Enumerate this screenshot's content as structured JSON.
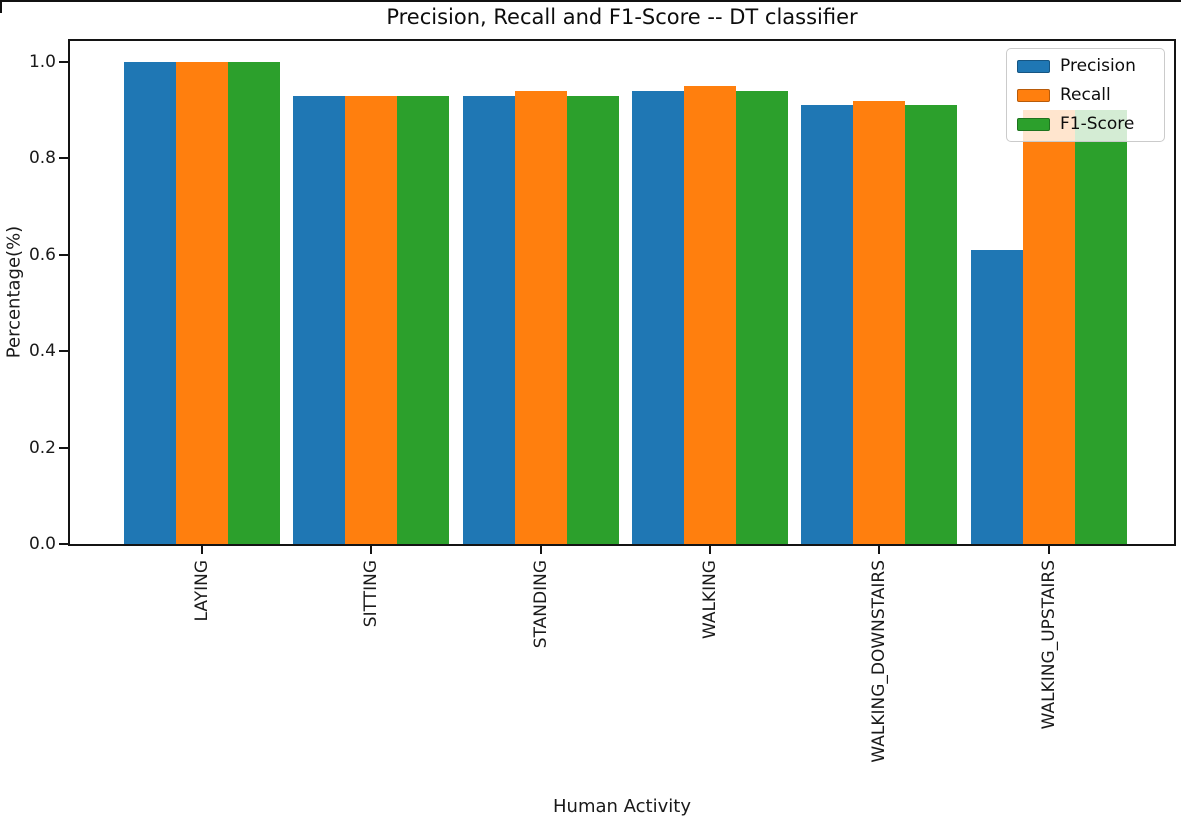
{
  "chart_data": {
    "type": "bar",
    "title": "Precision, Recall and F1-Score -- DT classifier",
    "xlabel": "Human Activity",
    "ylabel": "Percentage(%)",
    "categories": [
      "LAYING",
      "SITTING",
      "STANDING",
      "WALKING",
      "WALKING_DOWNSTAIRS",
      "WALKING_UPSTAIRS"
    ],
    "series": [
      {
        "name": "Precision",
        "color": "#1f77b4",
        "values": [
          1.0,
          0.93,
          0.93,
          0.94,
          0.91,
          0.61
        ]
      },
      {
        "name": "Recall",
        "color": "#ff7f0e",
        "values": [
          1.0,
          0.93,
          0.94,
          0.95,
          0.92,
          0.9
        ]
      },
      {
        "name": "F1-Score",
        "color": "#2ca02c",
        "values": [
          1.0,
          0.93,
          0.93,
          0.94,
          0.91,
          0.9
        ]
      }
    ],
    "yticks": [
      "0.0",
      "0.2",
      "0.4",
      "0.6",
      "0.8",
      "1.0"
    ],
    "ylim": [
      0.0,
      1.045
    ],
    "grid": false,
    "legend_position": "upper right",
    "legend_labels": [
      "Precision",
      "Recall",
      "F1-Score"
    ]
  }
}
